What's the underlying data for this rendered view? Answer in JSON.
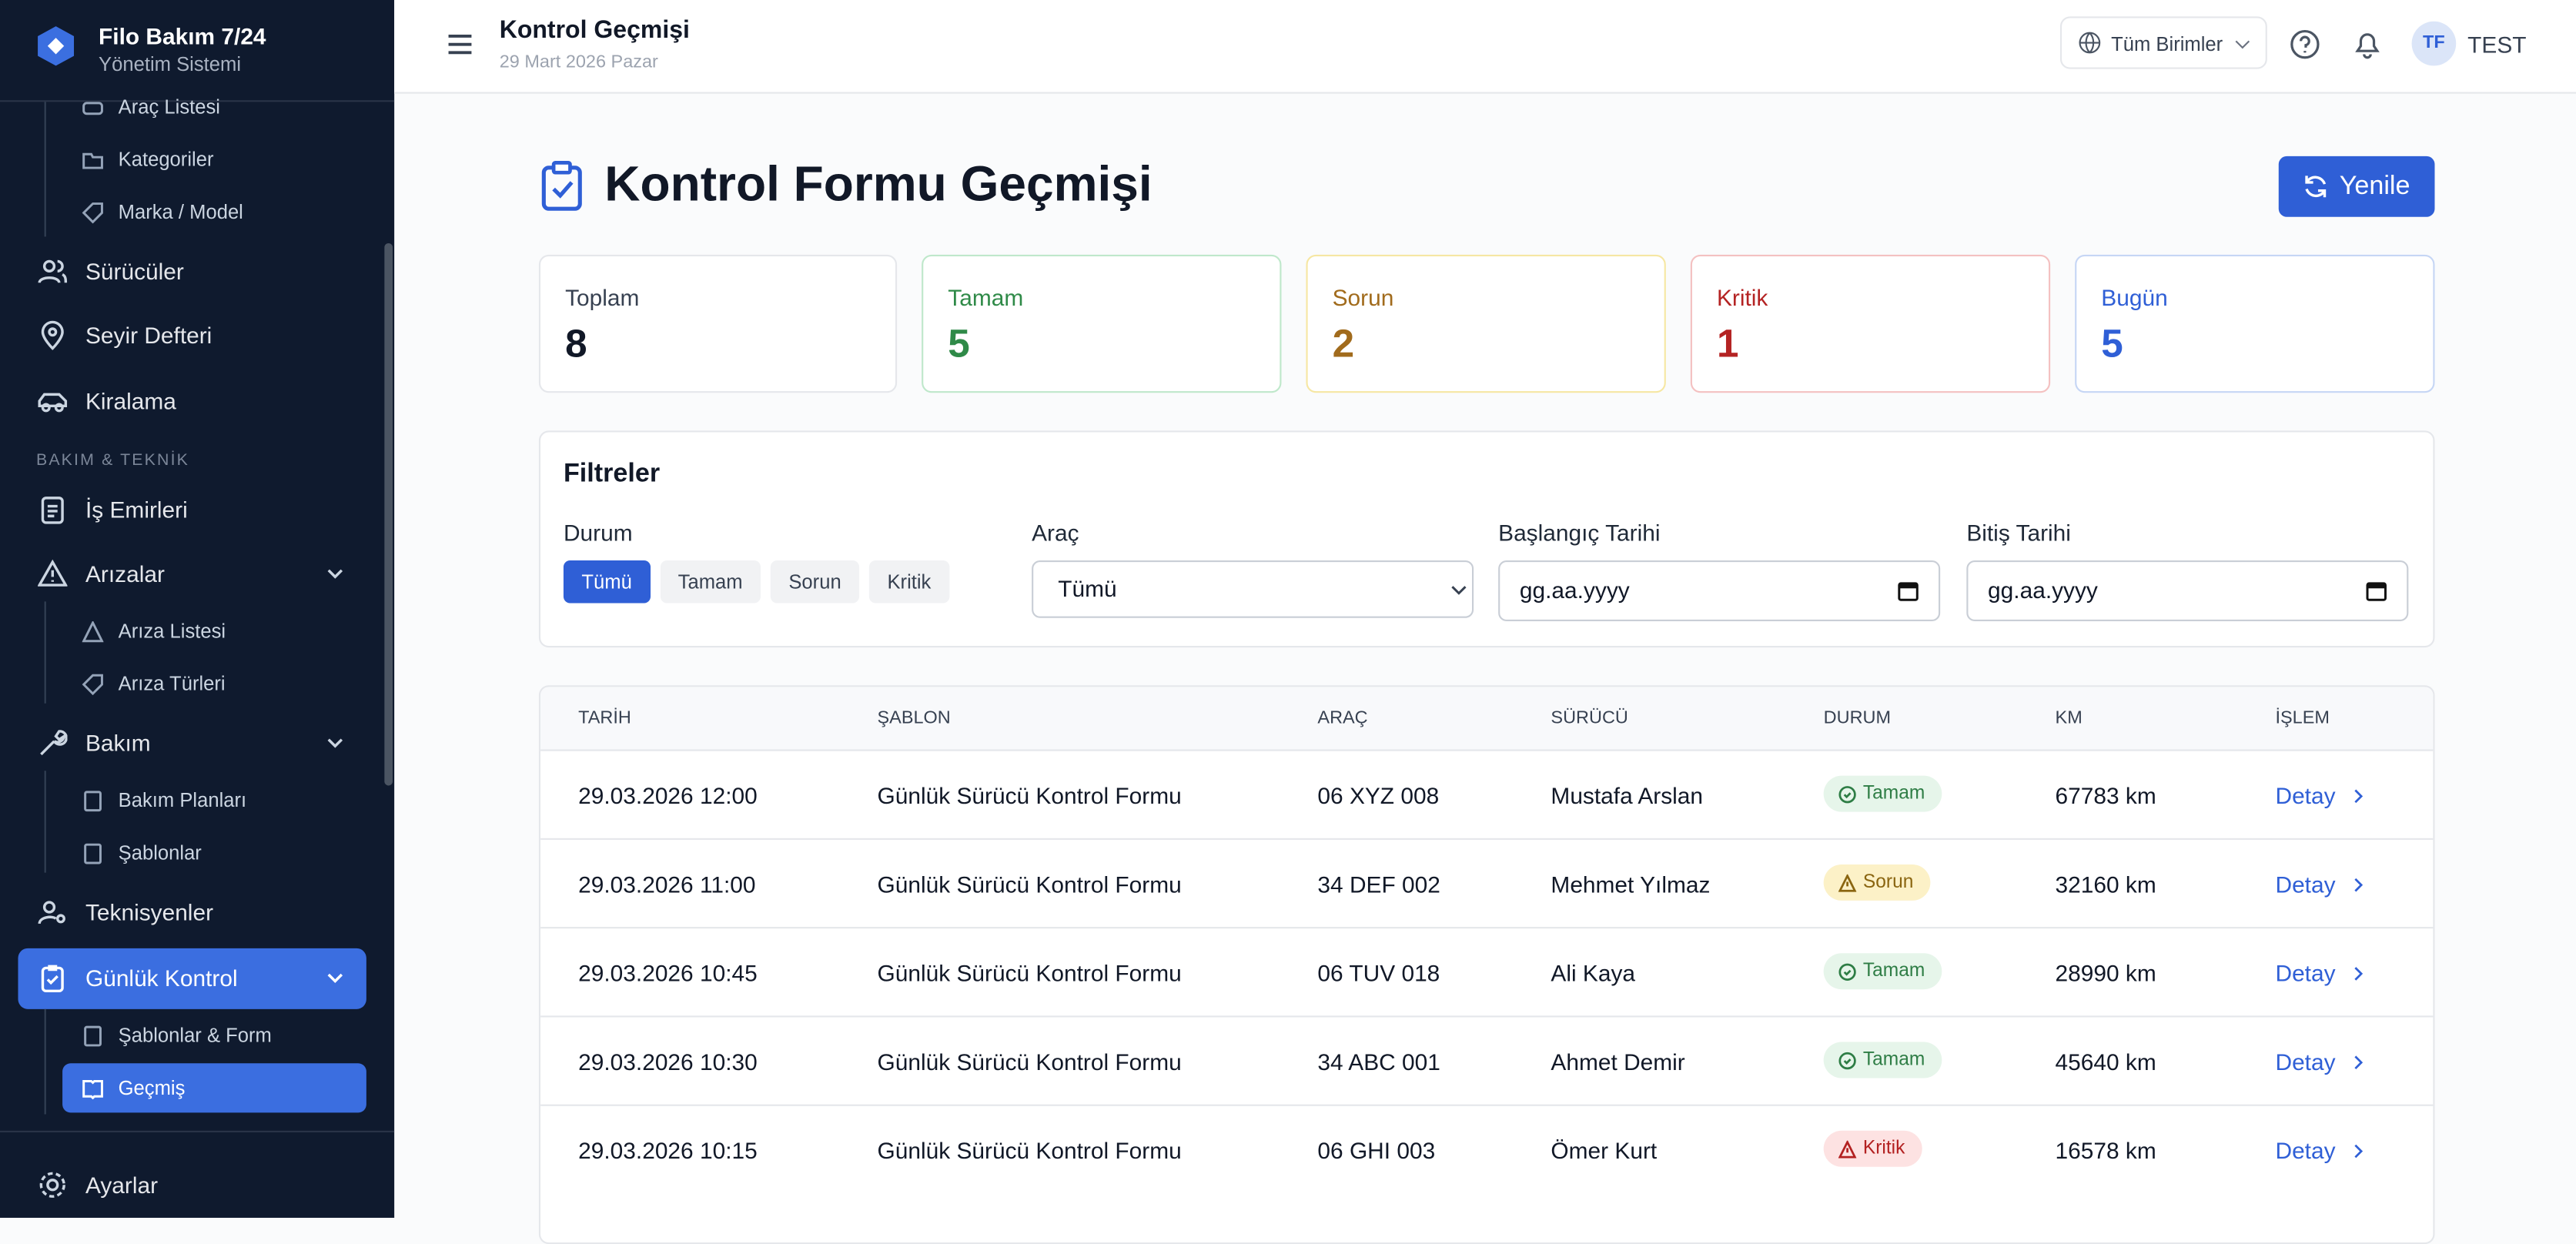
{
  "sidebar": {
    "brand": "Filo Bakım 7/24",
    "subtitle": "Yönetim Sistemi",
    "items": [
      "Araç Listesi",
      "Kategoriler",
      "Marka / Model",
      "Sürücüler",
      "Seyir Defteri",
      "Kiralama",
      "BAKIM & TEKNİK",
      "İş Emirleri",
      "Arızalar",
      "Arıza Listesi",
      "Arıza Türleri",
      "Bakım",
      "Bakım Planları",
      "Şablonlar",
      "Teknisyenler",
      "Günlük Kontrol",
      "Şablonlar & Form",
      "Geçmiş",
      "Ayarlar"
    ]
  },
  "header": {
    "title": "Kontrol Geçmişi",
    "date": "29 Mart 2026 Pazar",
    "unit": "Tüm Birimler",
    "avatar": "TF",
    "user": "TEST"
  },
  "page": {
    "title": "Kontrol Formu Geçmişi",
    "refresh": "Yenile"
  },
  "stats": [
    {
      "label": "Toplam",
      "value": "8"
    },
    {
      "label": "Tamam",
      "value": "5"
    },
    {
      "label": "Sorun",
      "value": "2"
    },
    {
      "label": "Kritik",
      "value": "1"
    },
    {
      "label": "Bugün",
      "value": "5"
    }
  ],
  "filters": {
    "title": "Filtreler",
    "status_label": "Durum",
    "status_options": [
      "Tümü",
      "Tamam",
      "Sorun",
      "Kritik"
    ],
    "vehicle_label": "Araç",
    "vehicle_value": "Tümü",
    "start_label": "Başlangıç Tarihi",
    "start_placeholder": "gg.aa.yyyy",
    "end_label": "Bitiş Tarihi",
    "end_placeholder": "gg.aa.yyyy"
  },
  "table": {
    "columns": [
      "TARİH",
      "ŞABLON",
      "ARAÇ",
      "SÜRÜCÜ",
      "DURUM",
      "KM",
      "İŞLEM"
    ],
    "rows": [
      [
        "29.03.2026 12:00",
        "Günlük Sürücü Kontrol Formu",
        "06 XYZ 008",
        "Mustafa Arslan",
        "Tamam",
        "67783 km",
        "Detay"
      ],
      [
        "29.03.2026 11:00",
        "Günlük Sürücü Kontrol Formu",
        "34 DEF 002",
        "Mehmet Yılmaz",
        "Sorun",
        "32160 km",
        "Detay"
      ],
      [
        "29.03.2026 10:45",
        "Günlük Sürücü Kontrol Formu",
        "06 TUV 018",
        "Ali Kaya",
        "Tamam",
        "28990 km",
        "Detay"
      ],
      [
        "29.03.2026 10:30",
        "Günlük Sürücü Kontrol Formu",
        "34 ABC 001",
        "Ahmet Demir",
        "Tamam",
        "45640 km",
        "Detay"
      ],
      [
        "29.03.2026 10:15",
        "Günlük Sürücü Kontrol Formu",
        "06 GHI 003",
        "Ömer Kurt",
        "Kritik",
        "16578 km",
        "Detay"
      ]
    ]
  }
}
